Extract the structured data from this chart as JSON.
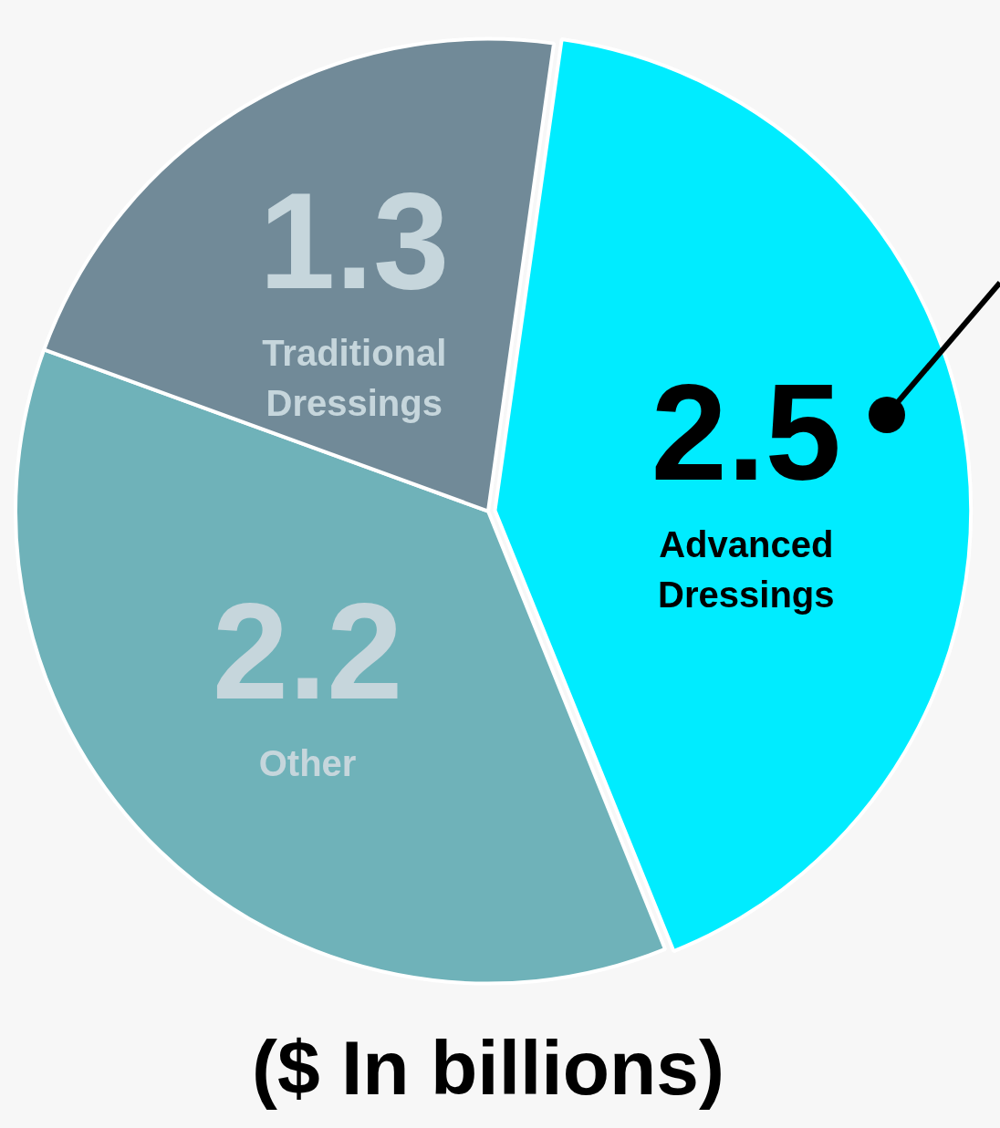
{
  "chart_data": {
    "type": "pie",
    "title": "($ In billions)",
    "categories": [
      "Advanced Dressings",
      "Other",
      "Traditional Dressings"
    ],
    "values": [
      2.5,
      2.2,
      1.3
    ],
    "colors": [
      "#00ecff",
      "#6fb2b9",
      "#718a98"
    ],
    "data_labels": true,
    "legend": false
  }
}
